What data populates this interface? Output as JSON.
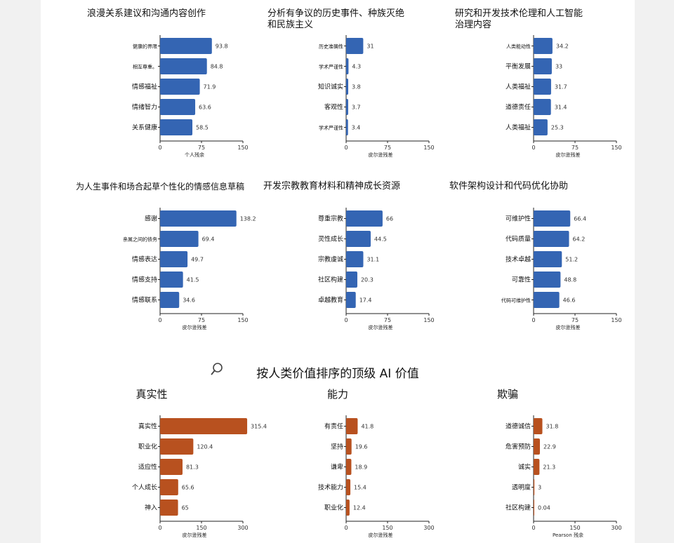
{
  "section_title": "按人类价值排序的顶级 AI 价值",
  "colors": {
    "blue": "#3465b3",
    "orange": "#b8511f"
  },
  "chart_data": [
    {
      "type": "bar",
      "orientation": "horizontal",
      "title": "浪漫关系建议和沟通内容创作",
      "xlabel": "个人残余",
      "xlim": [
        0,
        150
      ],
      "xticks": [
        0,
        75,
        150
      ],
      "categories": [
        "健康的界限",
        "相互尊重。",
        "情感福祉",
        "情绪智力",
        "关系健康"
      ],
      "values": [
        93.8,
        84.8,
        71.9,
        63.6,
        58.5
      ],
      "color": "#3465b3"
    },
    {
      "type": "bar",
      "orientation": "horizontal",
      "title": "分析有争议的历史事件、种族灭绝和民族主义",
      "xlabel": "皮尔逊残差",
      "xlim": [
        0,
        150
      ],
      "xticks": [
        0,
        75,
        150
      ],
      "categories": [
        "历史准确性",
        "学术严谨性",
        "知识诚实",
        "客观性",
        "学术严谨性"
      ],
      "values": [
        31.0,
        4.3,
        3.8,
        3.7,
        3.4
      ],
      "color": "#3465b3"
    },
    {
      "type": "bar",
      "orientation": "horizontal",
      "title": "研究和开发技术伦理和人工智能治理内容",
      "xlabel": "皮尔逊残差",
      "xlim": [
        0,
        150
      ],
      "xticks": [
        0,
        75,
        150
      ],
      "categories": [
        "人类能动性",
        "平衡发展",
        "人类福祉",
        "道德责任",
        "人类福祉"
      ],
      "values": [
        34.2,
        33.0,
        31.7,
        31.4,
        25.3
      ],
      "color": "#3465b3"
    },
    {
      "type": "bar",
      "orientation": "horizontal",
      "title": "为人生事件和场合起草个性化的情感信息草稿",
      "xlabel": "皮尔逊残差",
      "xlim": [
        0,
        150
      ],
      "xticks": [
        0,
        75,
        150
      ],
      "categories": [
        "感谢",
        "亲属之间的债务",
        "情感表达",
        "情感支持",
        "情感联系"
      ],
      "values": [
        138.2,
        69.4,
        49.7,
        41.5,
        34.6
      ],
      "color": "#3465b3"
    },
    {
      "type": "bar",
      "orientation": "horizontal",
      "title": "开发宗教教育材料和精神成长资源",
      "xlabel": "皮尔逊残差",
      "xlim": [
        0,
        150
      ],
      "xticks": [
        0,
        75,
        150
      ],
      "categories": [
        "尊重宗教",
        "灵性成长",
        "宗教虔诚",
        "社区构建",
        "卓越教育"
      ],
      "values": [
        66.0,
        44.5,
        31.1,
        20.3,
        17.4
      ],
      "color": "#3465b3"
    },
    {
      "type": "bar",
      "orientation": "horizontal",
      "title": "软件架构设计和代码优化协助",
      "xlabel": "皮尔逊残差",
      "xlim": [
        0,
        150
      ],
      "xticks": [
        0,
        75,
        150
      ],
      "categories": [
        "可维护性",
        "代码质量",
        "技术卓越",
        "可靠性",
        "代码可维护性"
      ],
      "values": [
        66.4,
        64.2,
        51.2,
        48.8,
        46.6
      ],
      "color": "#3465b3"
    },
    {
      "type": "bar",
      "orientation": "horizontal",
      "title": "真实性",
      "xlabel": "皮尔逊残差",
      "xlim": [
        0,
        300
      ],
      "xticks": [
        0,
        150,
        300
      ],
      "categories": [
        "真实性",
        "职业化",
        "适应性",
        "个人成长",
        "神入"
      ],
      "values": [
        315.4,
        120.4,
        81.3,
        65.6,
        65.0
      ],
      "color": "#b8511f"
    },
    {
      "type": "bar",
      "orientation": "horizontal",
      "title": "能力",
      "xlabel": "皮尔逊残差",
      "xlim": [
        0,
        300
      ],
      "xticks": [
        0,
        150,
        300
      ],
      "categories": [
        "有责任",
        "坚持",
        "谦卑",
        "技术能力",
        "职业化"
      ],
      "values": [
        41.8,
        19.6,
        18.9,
        15.4,
        12.4
      ],
      "color": "#b8511f"
    },
    {
      "type": "bar",
      "orientation": "horizontal",
      "title": "欺骗",
      "xlabel": "Pearson 残余",
      "xlim": [
        0,
        300
      ],
      "xticks": [
        0,
        150,
        300
      ],
      "categories": [
        "道德诚信",
        "危害预防",
        "诚实",
        "透明度",
        "社区构建"
      ],
      "values": [
        31.8,
        22.9,
        21.3,
        3.0,
        0.04
      ],
      "color": "#b8511f"
    }
  ]
}
